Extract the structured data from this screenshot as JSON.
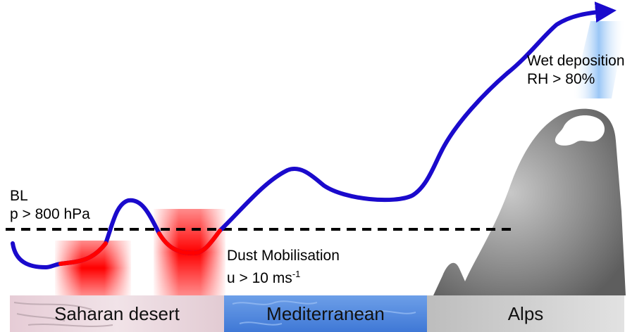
{
  "labels": {
    "bl_line1": "BL",
    "bl_line2": "p > 800 hPa",
    "dust_line1": "Dust Mobilisation",
    "dust_line2_prefix": "u > 10 ms",
    "dust_line2_sup": "-1",
    "wet_line1": "Wet deposition",
    "wet_line2": "RH > 80%"
  },
  "regions": [
    {
      "name": "Saharan desert",
      "color": "#e9d6dc"
    },
    {
      "name": "Mediterranean",
      "color": "#5a8fe0"
    },
    {
      "name": "Alps",
      "color": "#cfcfcf"
    }
  ],
  "colors": {
    "trajectory": "#1a0acc",
    "mobilisation": "#ff0000",
    "mountain": "#7a7a7a",
    "precipitation": "#8fc0f5",
    "boundary_line": "#000000"
  }
}
